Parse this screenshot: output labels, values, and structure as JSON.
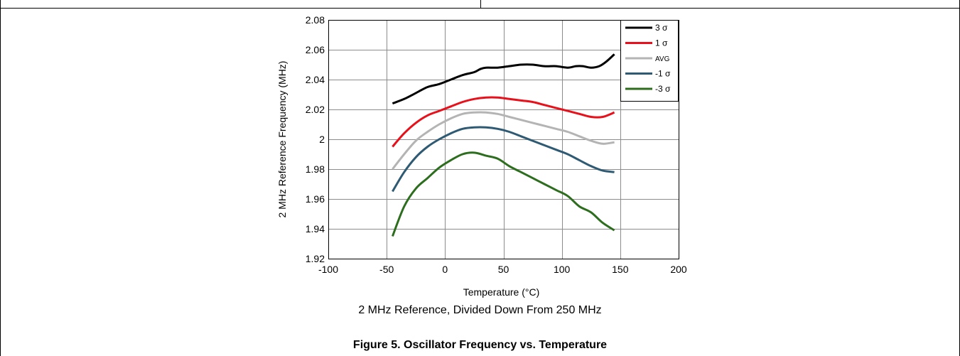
{
  "figure": {
    "subtitle": "2 MHz Reference, Divided Down From 250 MHz",
    "title": "Figure 5. Oscillator Frequency vs. Temperature"
  },
  "chart_data": {
    "type": "line",
    "xlabel": "Temperature (°C)",
    "ylabel": "2 MHz Reference Frequency (MHz)",
    "xlim": [
      -100,
      200
    ],
    "ylim": [
      1.92,
      2.08
    ],
    "xticks": [
      -100,
      -50,
      0,
      50,
      100,
      150,
      200
    ],
    "xtick_labels": [
      "-100",
      "-50",
      "0",
      "50",
      "100",
      "150",
      "200"
    ],
    "yticks": [
      1.92,
      1.94,
      1.96,
      1.98,
      2.0,
      2.02,
      2.04,
      2.06,
      2.08
    ],
    "ytick_labels": [
      "1.92",
      "1.94",
      "1.96",
      "1.98",
      "2",
      "2.02",
      "2.04",
      "2.06",
      "2.08"
    ],
    "grid": true,
    "legend_position": "top-right",
    "series": [
      {
        "name": "3 σ",
        "color": "#000000",
        "points": [
          [
            -45,
            2.024
          ],
          [
            -35,
            2.027
          ],
          [
            -25,
            2.031
          ],
          [
            -15,
            2.035
          ],
          [
            -5,
            2.037
          ],
          [
            5,
            2.04
          ],
          [
            15,
            2.043
          ],
          [
            25,
            2.045
          ],
          [
            30,
            2.047
          ],
          [
            35,
            2.048
          ],
          [
            45,
            2.048
          ],
          [
            55,
            2.049
          ],
          [
            65,
            2.05
          ],
          [
            75,
            2.05
          ],
          [
            85,
            2.049
          ],
          [
            95,
            2.049
          ],
          [
            105,
            2.048
          ],
          [
            112,
            2.049
          ],
          [
            118,
            2.049
          ],
          [
            125,
            2.048
          ],
          [
            132,
            2.049
          ],
          [
            138,
            2.052
          ],
          [
            145,
            2.057
          ]
        ]
      },
      {
        "name": "1 σ",
        "color": "#e8101a",
        "points": [
          [
            -45,
            1.995
          ],
          [
            -35,
            2.004
          ],
          [
            -25,
            2.011
          ],
          [
            -15,
            2.016
          ],
          [
            -5,
            2.019
          ],
          [
            5,
            2.022
          ],
          [
            15,
            2.025
          ],
          [
            25,
            2.027
          ],
          [
            35,
            2.028
          ],
          [
            45,
            2.028
          ],
          [
            55,
            2.027
          ],
          [
            65,
            2.026
          ],
          [
            75,
            2.025
          ],
          [
            85,
            2.023
          ],
          [
            95,
            2.021
          ],
          [
            105,
            2.019
          ],
          [
            115,
            2.017
          ],
          [
            125,
            2.015
          ],
          [
            135,
            2.015
          ],
          [
            145,
            2.018
          ]
        ]
      },
      {
        "name": "AVG",
        "color": "#b4b4b4",
        "points": [
          [
            -45,
            1.98
          ],
          [
            -35,
            1.99
          ],
          [
            -25,
            1.999
          ],
          [
            -15,
            2.005
          ],
          [
            -5,
            2.01
          ],
          [
            5,
            2.014
          ],
          [
            15,
            2.017
          ],
          [
            25,
            2.018
          ],
          [
            35,
            2.018
          ],
          [
            45,
            2.017
          ],
          [
            55,
            2.015
          ],
          [
            65,
            2.013
          ],
          [
            75,
            2.011
          ],
          [
            85,
            2.009
          ],
          [
            95,
            2.007
          ],
          [
            105,
            2.005
          ],
          [
            115,
            2.002
          ],
          [
            125,
            1.999
          ],
          [
            135,
            1.997
          ],
          [
            145,
            1.998
          ]
        ]
      },
      {
        "name": "-1 σ",
        "color": "#2e5a74",
        "points": [
          [
            -45,
            1.965
          ],
          [
            -35,
            1.978
          ],
          [
            -25,
            1.988
          ],
          [
            -15,
            1.995
          ],
          [
            -5,
            2.0
          ],
          [
            5,
            2.004
          ],
          [
            15,
            2.007
          ],
          [
            25,
            2.008
          ],
          [
            35,
            2.008
          ],
          [
            45,
            2.007
          ],
          [
            55,
            2.005
          ],
          [
            65,
            2.002
          ],
          [
            75,
            1.999
          ],
          [
            85,
            1.996
          ],
          [
            95,
            1.993
          ],
          [
            105,
            1.99
          ],
          [
            115,
            1.986
          ],
          [
            125,
            1.982
          ],
          [
            135,
            1.979
          ],
          [
            145,
            1.978
          ]
        ]
      },
      {
        "name": "-3 σ",
        "color": "#2d6e1e",
        "points": [
          [
            -45,
            1.935
          ],
          [
            -35,
            1.955
          ],
          [
            -25,
            1.967
          ],
          [
            -15,
            1.974
          ],
          [
            -5,
            1.981
          ],
          [
            5,
            1.986
          ],
          [
            15,
            1.99
          ],
          [
            25,
            1.991
          ],
          [
            35,
            1.989
          ],
          [
            45,
            1.987
          ],
          [
            55,
            1.982
          ],
          [
            65,
            1.978
          ],
          [
            75,
            1.974
          ],
          [
            85,
            1.97
          ],
          [
            95,
            1.966
          ],
          [
            105,
            1.962
          ],
          [
            115,
            1.955
          ],
          [
            125,
            1.951
          ],
          [
            135,
            1.944
          ],
          [
            145,
            1.939
          ]
        ]
      }
    ]
  }
}
